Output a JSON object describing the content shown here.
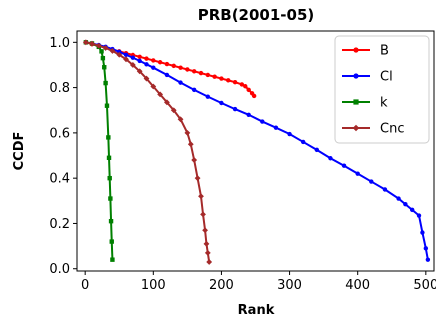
{
  "chart_data": {
    "type": "line",
    "title": "PRB(2001-05)",
    "xlabel": "Rank",
    "ylabel": "CCDF",
    "xlim": [
      -12,
      512
    ],
    "ylim": [
      -0.01,
      1.05
    ],
    "xticks": [
      0,
      100,
      200,
      300,
      400,
      500
    ],
    "yticks": [
      0.0,
      0.2,
      0.4,
      0.6,
      0.8,
      1.0
    ],
    "xtick_labels": [
      "0",
      "100",
      "200",
      "300",
      "400",
      "500"
    ],
    "ytick_labels": [
      "0.0",
      "0.2",
      "0.4",
      "0.6",
      "0.8",
      "1.0"
    ],
    "grid": false,
    "legend_position": "top-right",
    "series": [
      {
        "name": "B",
        "color": "#ff0000",
        "marker": "circle",
        "x": [
          1,
          10,
          20,
          30,
          40,
          50,
          60,
          70,
          80,
          90,
          100,
          110,
          120,
          130,
          140,
          150,
          160,
          170,
          180,
          190,
          200,
          210,
          220,
          230,
          235,
          240,
          245,
          248
        ],
        "y": [
          1.0,
          0.992,
          0.984,
          0.976,
          0.968,
          0.96,
          0.952,
          0.944,
          0.936,
          0.928,
          0.92,
          0.912,
          0.904,
          0.896,
          0.888,
          0.88,
          0.872,
          0.864,
          0.856,
          0.848,
          0.84,
          0.832,
          0.824,
          0.814,
          0.806,
          0.79,
          0.775,
          0.763
        ]
      },
      {
        "name": "Cl",
        "color": "#0000ff",
        "marker": "circle",
        "x": [
          1,
          10,
          20,
          30,
          40,
          50,
          60,
          70,
          80,
          90,
          100,
          120,
          140,
          160,
          180,
          200,
          220,
          240,
          260,
          280,
          300,
          320,
          340,
          360,
          380,
          400,
          420,
          440,
          460,
          470,
          480,
          490,
          495,
          500,
          503
        ],
        "y": [
          1.0,
          0.995,
          0.988,
          0.98,
          0.97,
          0.958,
          0.945,
          0.932,
          0.918,
          0.903,
          0.888,
          0.856,
          0.822,
          0.79,
          0.76,
          0.732,
          0.705,
          0.68,
          0.65,
          0.623,
          0.595,
          0.56,
          0.525,
          0.488,
          0.455,
          0.42,
          0.385,
          0.35,
          0.31,
          0.285,
          0.26,
          0.235,
          0.16,
          0.09,
          0.04
        ]
      },
      {
        "name": "k",
        "color": "#008000",
        "marker": "square",
        "x": [
          1,
          10,
          20,
          24,
          26,
          28,
          30,
          32,
          34,
          35,
          36,
          37,
          38,
          39,
          40
        ],
        "y": [
          1.0,
          0.995,
          0.98,
          0.96,
          0.93,
          0.89,
          0.82,
          0.72,
          0.58,
          0.49,
          0.4,
          0.31,
          0.21,
          0.12,
          0.04
        ]
      },
      {
        "name": "Cnc",
        "color": "#a52a2a",
        "marker": "diamond",
        "x": [
          1,
          10,
          20,
          30,
          40,
          50,
          60,
          70,
          80,
          90,
          100,
          110,
          120,
          130,
          140,
          150,
          155,
          160,
          165,
          170,
          173,
          176,
          178,
          180,
          182
        ],
        "y": [
          1.0,
          0.994,
          0.985,
          0.975,
          0.962,
          0.945,
          0.925,
          0.9,
          0.872,
          0.84,
          0.805,
          0.77,
          0.735,
          0.7,
          0.66,
          0.6,
          0.55,
          0.48,
          0.4,
          0.32,
          0.24,
          0.17,
          0.11,
          0.07,
          0.03
        ]
      }
    ]
  }
}
